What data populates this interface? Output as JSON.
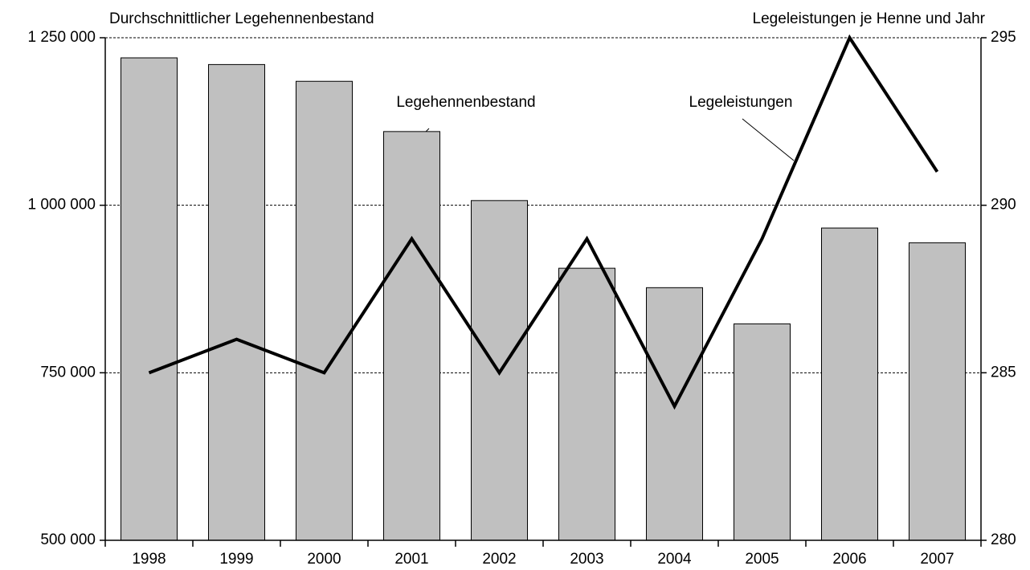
{
  "chart_data": {
    "type": "bar-line",
    "ylabel": "Durchschnittlicher Legehennenbestand",
    "y2label": "Legeleistungen je Henne und Jahr",
    "categories": [
      "1998",
      "1999",
      "2000",
      "2001",
      "2002",
      "2003",
      "2004",
      "2005",
      "2006",
      "2007"
    ],
    "series": [
      {
        "name": "Legehennenbestand",
        "type": "bar",
        "color": "#c0c0c0",
        "axis": "y",
        "values": [
          1220000,
          1210000,
          1185000,
          1110000,
          1007000,
          906000,
          877000,
          823000,
          966000,
          944000
        ]
      },
      {
        "name": "Legeleistungen",
        "type": "line",
        "color": "#000000",
        "axis": "y2",
        "values": [
          285,
          286,
          285,
          289,
          285,
          289,
          284,
          289,
          295,
          291
        ]
      }
    ],
    "ylim": [
      500000,
      1250000
    ],
    "yticks": [
      {
        "value": 500000,
        "label": "500 000"
      },
      {
        "value": 750000,
        "label": "750 000"
      },
      {
        "value": 1000000,
        "label": "1 000 000"
      },
      {
        "value": 1250000,
        "label": "1 250 000"
      }
    ],
    "y2lim": [
      280,
      295
    ],
    "y2ticks": [
      280,
      285,
      290,
      295
    ],
    "grid": true
  }
}
